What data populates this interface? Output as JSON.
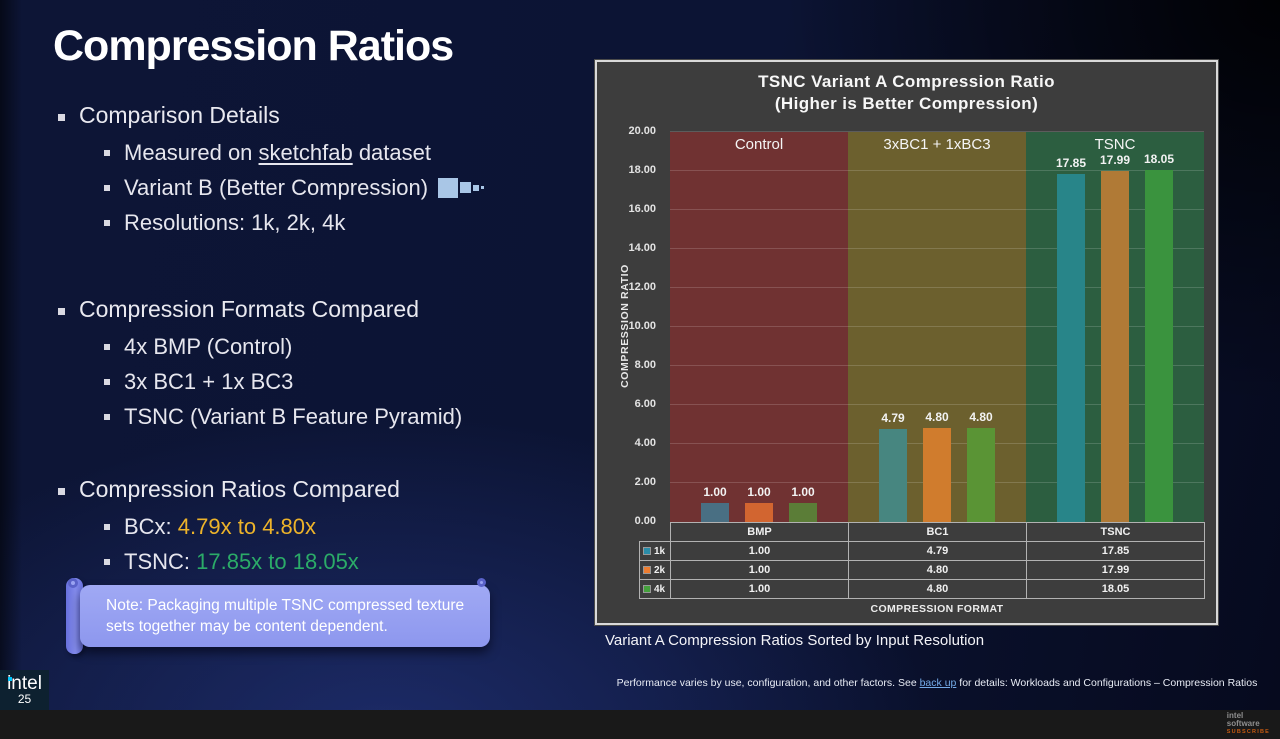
{
  "slide": {
    "title": "Compression Ratios"
  },
  "left": {
    "g1": {
      "heading": "Comparison Details",
      "sub1_prefix": "Measured on ",
      "sub1_link": "sketchfab",
      "sub1_suffix": " dataset",
      "sub2": "Variant B (Better Compression)",
      "sub3": "Resolutions: 1k, 2k, 4k"
    },
    "g2": {
      "heading": "Compression Formats Compared",
      "sub1": "4x BMP (Control)",
      "sub2": "3x BC1 + 1x BC3",
      "sub3": "TSNC (Variant B Feature Pyramid)"
    },
    "g3": {
      "heading": "Compression Ratios Compared",
      "sub1_label": "BCx: ",
      "sub1_value": "4.79x to 4.80x",
      "sub2_label": "TSNC: ",
      "sub2_value": "17.85x to 18.05x"
    },
    "note": "Note: Packaging multiple TSNC compressed texture sets together may be content dependent."
  },
  "chart_caption": "Variant A Compression Ratios Sorted by Input Resolution",
  "footer": {
    "prefix": "Performance varies by use, configuration, and other factors. See ",
    "link": "back up",
    "suffix": " for details: Workloads and Configurations – Compression Ratios"
  },
  "branding": {
    "logo": "intel",
    "year": "25",
    "sw1": "intel",
    "sw2": "software",
    "sw3": "SUBSCRIBE"
  },
  "chart_data": {
    "type": "bar",
    "title": "TSNC Variant A Compression Ratio",
    "subtitle": "(Higher is Better Compression)",
    "xlabel": "COMPRESSION FORMAT",
    "ylabel": "COMPRESSION RATIO",
    "ylim": [
      0,
      20
    ],
    "ytick_step": 2,
    "grid": true,
    "legend_position": "table-left",
    "categories": [
      "BMP",
      "BC1",
      "TSNC"
    ],
    "regions": [
      {
        "label": "Control",
        "rgb": [
          146,
          44,
          44
        ],
        "alpha": 0.6
      },
      {
        "label": "3xBC1 + 1xBC3",
        "rgb": [
          140,
          120,
          36
        ],
        "alpha": 0.6
      },
      {
        "label": "TSNC",
        "rgb": [
          34,
          116,
          66
        ],
        "alpha": 0.6
      }
    ],
    "series": [
      {
        "name": "1k",
        "rgb": [
          42,
          140,
          168
        ],
        "values": [
          1.0,
          4.79,
          17.85
        ]
      },
      {
        "name": "2k",
        "rgb": [
          237,
          125,
          49
        ],
        "values": [
          1.0,
          4.8,
          17.99
        ]
      },
      {
        "name": "4k",
        "rgb": [
          68,
          160,
          60
        ],
        "values": [
          1.0,
          4.8,
          18.05
        ]
      }
    ]
  }
}
